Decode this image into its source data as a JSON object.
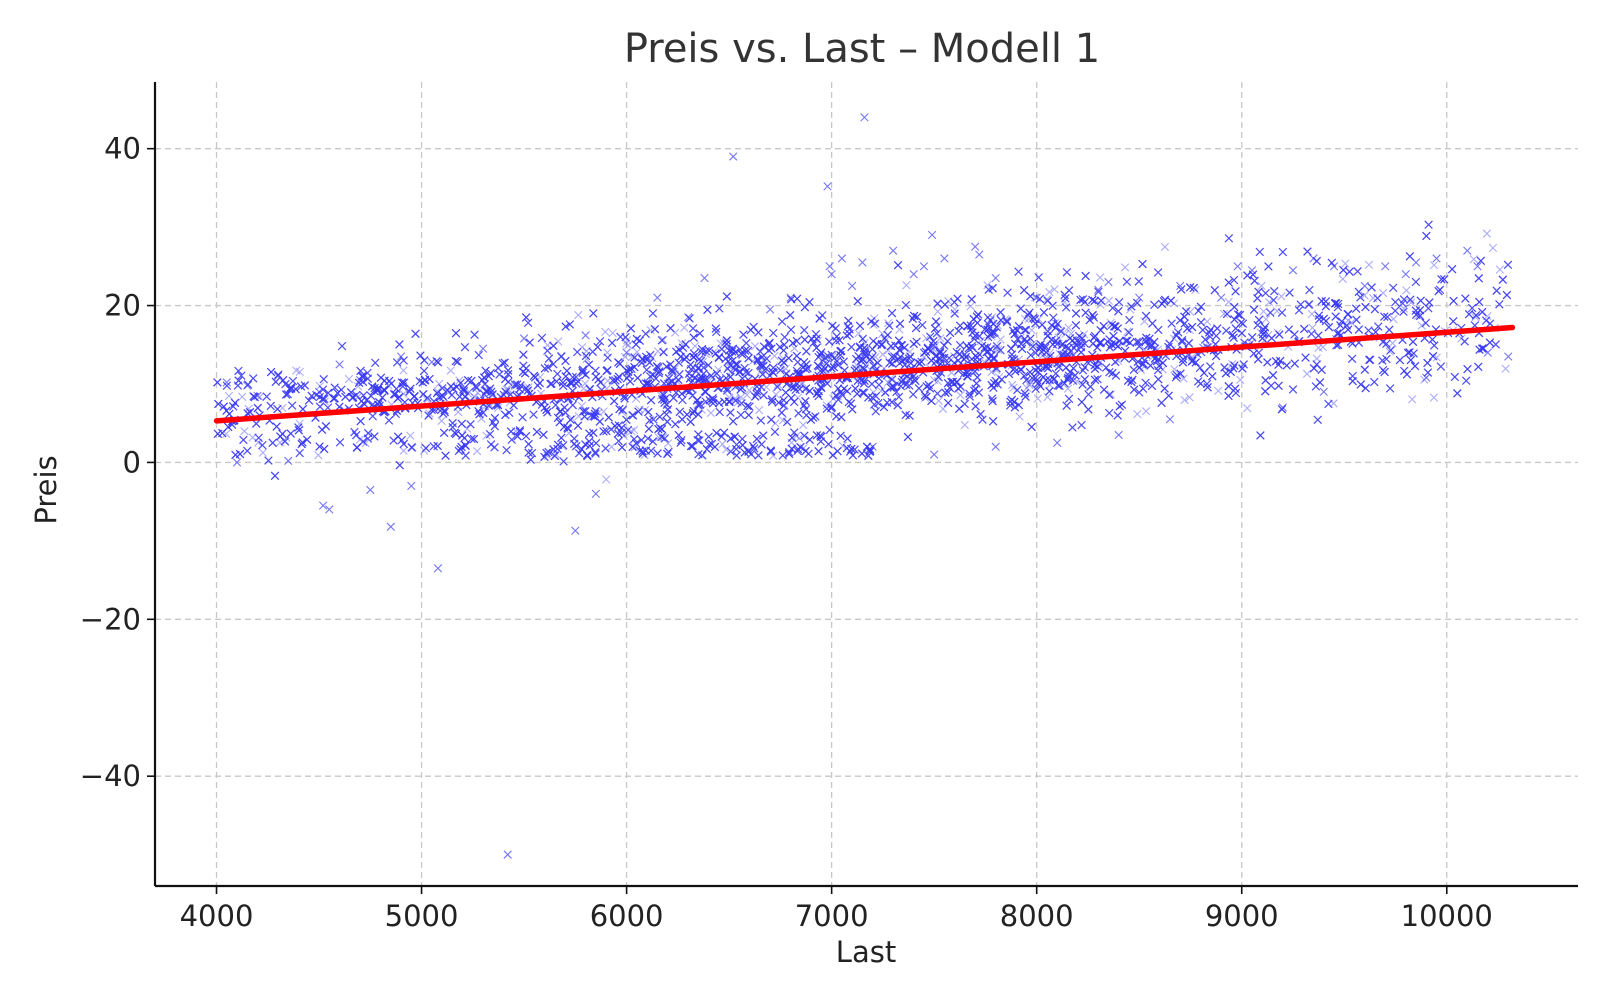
{
  "chart_data": {
    "type": "scatter",
    "title": "Preis vs. Last – Modell 1",
    "xlabel": "Last",
    "ylabel": "Preis",
    "xlim": [
      3700,
      10640
    ],
    "ylim": [
      -54,
      48.5
    ],
    "xticks": [
      4000,
      5000,
      6000,
      7000,
      8000,
      9000,
      10000
    ],
    "yticks": [
      -40,
      -20,
      0,
      20,
      40
    ],
    "xtick_labels": [
      "4000",
      "5000",
      "6000",
      "7000",
      "8000",
      "9000",
      "10000"
    ],
    "ytick_labels": [
      "−40",
      "−20",
      "0",
      "20",
      "40"
    ],
    "grid": true,
    "legend": "none",
    "colors": {
      "points": "#3a3af5",
      "fit": "#ff0000",
      "grid": "#c8c8c8",
      "axis": "#111111"
    },
    "series": [
      {
        "kind": "scatter",
        "marker": "x",
        "approx_point_count": 8700,
        "points": [
          [
            4050,
            10.2
          ],
          [
            4100,
            0.0
          ],
          [
            4150,
            9.8
          ],
          [
            4200,
            8.5
          ],
          [
            4300,
            11.0
          ],
          [
            4350,
            0.2
          ],
          [
            4500,
            9.0
          ],
          [
            4520,
            -5.5
          ],
          [
            4550,
            -6.0
          ],
          [
            4600,
            12.5
          ],
          [
            4700,
            10.5
          ],
          [
            4750,
            -3.5
          ],
          [
            4850,
            -8.2
          ],
          [
            4900,
            13.5
          ],
          [
            4950,
            -3.0
          ],
          [
            5050,
            12.8
          ],
          [
            5080,
            -13.5
          ],
          [
            5300,
            14.5
          ],
          [
            5420,
            -50.0
          ],
          [
            5500,
            15.8
          ],
          [
            5750,
            -8.7
          ],
          [
            5800,
            16.2
          ],
          [
            5850,
            -4.0
          ],
          [
            6000,
            14.0
          ],
          [
            6150,
            21.0
          ],
          [
            6300,
            18.5
          ],
          [
            6380,
            23.5
          ],
          [
            6520,
            39.0
          ],
          [
            6700,
            19.5
          ],
          [
            6800,
            21.0
          ],
          [
            6980,
            35.2
          ],
          [
            6990,
            25.0
          ],
          [
            7000,
            24.0
          ],
          [
            7050,
            26.0
          ],
          [
            7100,
            22.5
          ],
          [
            7150,
            25.5
          ],
          [
            7160,
            44.0
          ],
          [
            7300,
            27.0
          ],
          [
            7400,
            24.0
          ],
          [
            7450,
            25.0
          ],
          [
            7490,
            29.0
          ],
          [
            7550,
            26.0
          ],
          [
            7700,
            27.5
          ],
          [
            7720,
            26.5
          ],
          [
            7800,
            23.5
          ],
          [
            8000,
            21.0
          ],
          [
            8300,
            22.0
          ],
          [
            8350,
            23.0
          ],
          [
            8500,
            21.0
          ],
          [
            8700,
            22.5
          ],
          [
            8900,
            21.0
          ],
          [
            8980,
            25.0
          ],
          [
            9050,
            24.5
          ],
          [
            9250,
            24.5
          ],
          [
            9350,
            26.0
          ],
          [
            9450,
            25.0
          ],
          [
            9600,
            22.5
          ],
          [
            9700,
            25.0
          ],
          [
            9800,
            24.0
          ],
          [
            9850,
            25.5
          ],
          [
            9950,
            26.0
          ],
          [
            10100,
            27.0
          ],
          [
            10150,
            25.0
          ],
          [
            10200,
            14.0
          ],
          [
            10300,
            13.5
          ],
          [
            8100,
            2.5
          ],
          [
            8400,
            3.5
          ],
          [
            8650,
            5.5
          ],
          [
            9200,
            7.0
          ],
          [
            9400,
            9.0
          ],
          [
            9900,
            10.8
          ],
          [
            7500,
            1.0
          ],
          [
            7200,
            2.0
          ],
          [
            7800,
            2.0
          ]
        ]
      },
      {
        "kind": "line",
        "description": "linear fit",
        "x": [
          4000,
          10320
        ],
        "y": [
          5.3,
          17.2
        ]
      }
    ]
  }
}
